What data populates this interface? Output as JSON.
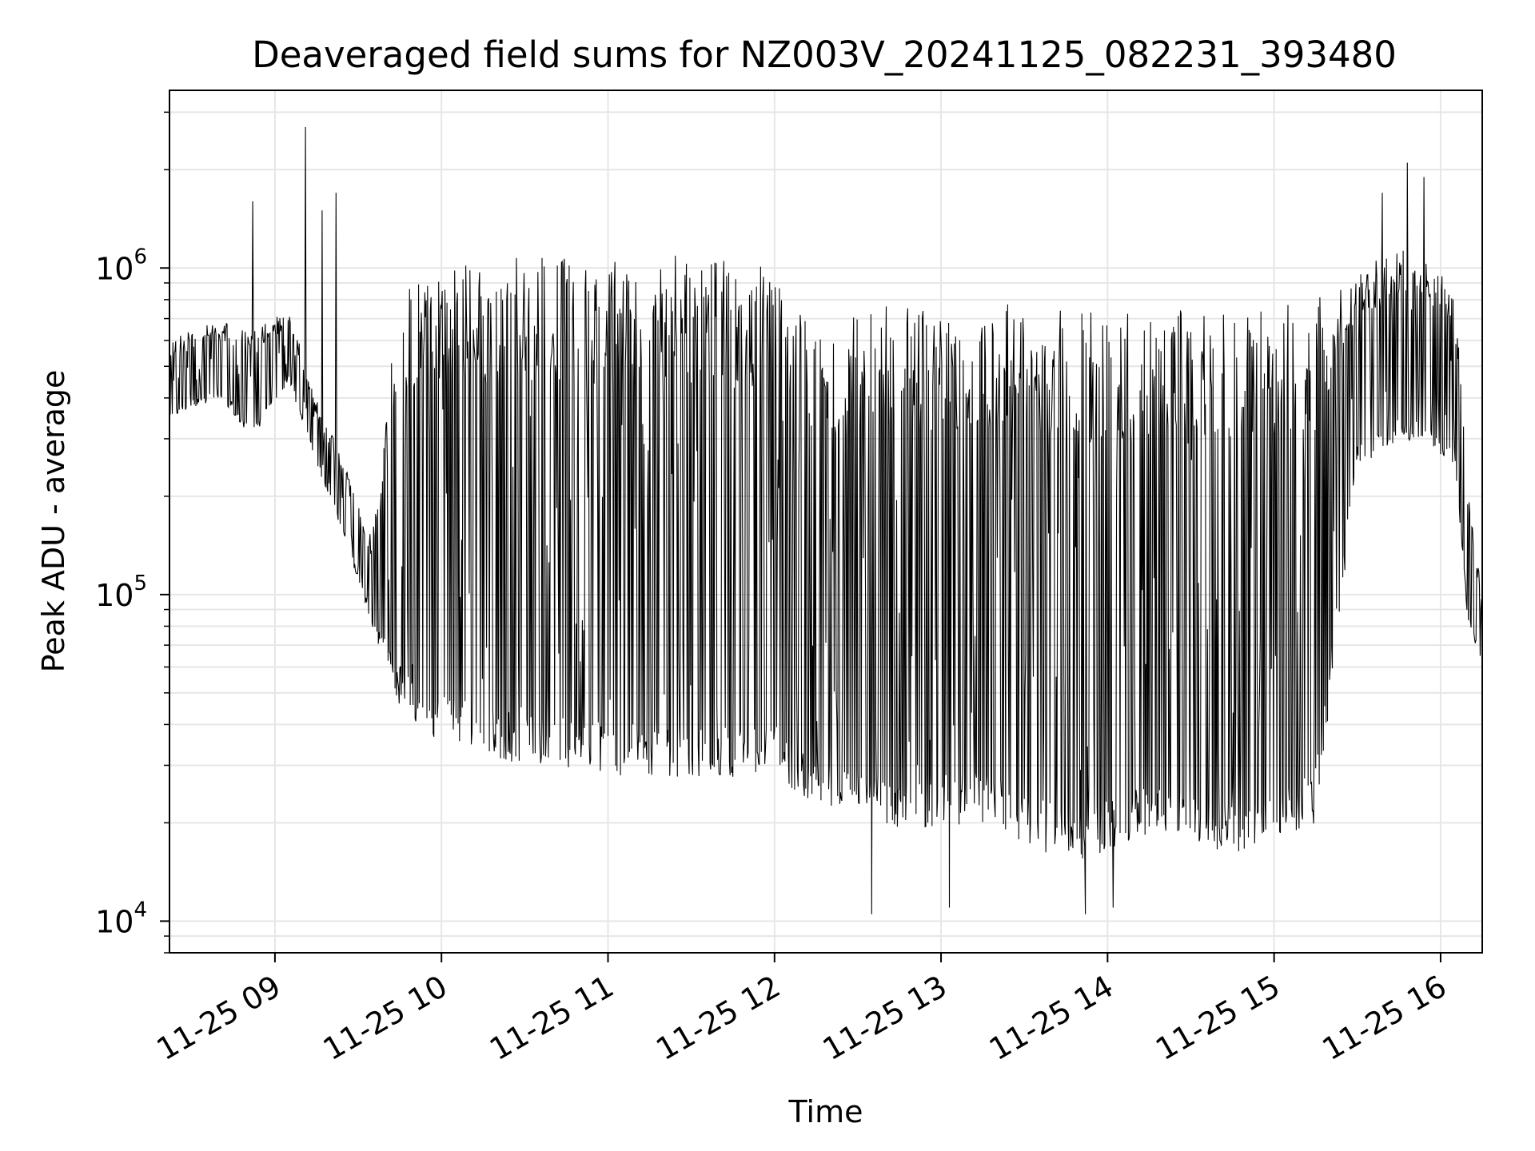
{
  "chart_data": {
    "type": "line",
    "title": "Deaveraged field sums for NZ003V_20241125_082231_393480",
    "xlabel": "Time",
    "ylabel": "Peak ADU - average",
    "yscale": "log",
    "x_range": [
      "2024-11-25 08:22",
      "2024-11-25 16:15"
    ],
    "ylim": [
      8000,
      3500000
    ],
    "grid": true,
    "line_color": "#000000",
    "x_ticks": [
      {
        "time": "2024-11-25 09:00",
        "label": "11-25 09"
      },
      {
        "time": "2024-11-25 10:00",
        "label": "11-25 10"
      },
      {
        "time": "2024-11-25 11:00",
        "label": "11-25 11"
      },
      {
        "time": "2024-11-25 12:00",
        "label": "11-25 12"
      },
      {
        "time": "2024-11-25 13:00",
        "label": "11-25 13"
      },
      {
        "time": "2024-11-25 14:00",
        "label": "11-25 14"
      },
      {
        "time": "2024-11-25 15:00",
        "label": "11-25 15"
      },
      {
        "time": "2024-11-25 16:00",
        "label": "11-25 16"
      }
    ],
    "y_ticks": [
      {
        "value": 10000,
        "base": "10",
        "exp": "4"
      },
      {
        "value": 100000,
        "base": "10",
        "exp": "5"
      },
      {
        "value": 1000000,
        "base": "10",
        "exp": "6"
      }
    ],
    "series": [
      {
        "envelope": [
          {
            "time": "2024-11-25 08:22",
            "low": 350000,
            "high": 600000
          },
          {
            "time": "2024-11-25 08:40",
            "low": 400000,
            "high": 700000
          },
          {
            "time": "2024-11-25 08:52",
            "low": 300000,
            "high": 650000
          },
          {
            "time": "2024-11-25 09:05",
            "low": 450000,
            "high": 750000
          },
          {
            "time": "2024-11-25 09:15",
            "low": 250000,
            "high": 400000
          },
          {
            "time": "2024-11-25 09:25",
            "low": 150000,
            "high": 250000
          },
          {
            "time": "2024-11-25 09:35",
            "low": 80000,
            "high": 150000
          },
          {
            "time": "2024-11-25 09:45",
            "low": 45000,
            "high": 900000
          },
          {
            "time": "2024-11-25 10:00",
            "low": 35000,
            "high": 1000000
          },
          {
            "time": "2024-11-25 10:30",
            "low": 30000,
            "high": 1100000
          },
          {
            "time": "2024-11-25 11:00",
            "low": 28000,
            "high": 1100000
          },
          {
            "time": "2024-11-25 11:30",
            "low": 27000,
            "high": 1100000
          },
          {
            "time": "2024-11-25 12:00",
            "low": 28000,
            "high": 1000000
          },
          {
            "time": "2024-11-25 12:15",
            "low": 22000,
            "high": 700000
          },
          {
            "time": "2024-11-25 12:45",
            "low": 19000,
            "high": 800000
          },
          {
            "time": "2024-11-25 13:15",
            "low": 20000,
            "high": 800000
          },
          {
            "time": "2024-11-25 13:45",
            "low": 15000,
            "high": 750000
          },
          {
            "time": "2024-11-25 14:15",
            "low": 18000,
            "high": 750000
          },
          {
            "time": "2024-11-25 14:45",
            "low": 16000,
            "high": 750000
          },
          {
            "time": "2024-11-25 15:15",
            "low": 20000,
            "high": 800000
          },
          {
            "time": "2024-11-25 15:30",
            "low": 250000,
            "high": 1000000
          },
          {
            "time": "2024-11-25 15:50",
            "low": 300000,
            "high": 1200000
          },
          {
            "time": "2024-11-25 16:05",
            "low": 250000,
            "high": 900000
          },
          {
            "time": "2024-11-25 16:10",
            "low": 80000,
            "high": 200000
          },
          {
            "time": "2024-11-25 16:15",
            "low": 60000,
            "high": 100000
          }
        ],
        "spikes": [
          {
            "time": "2024-11-25 08:52",
            "value": 1600000
          },
          {
            "time": "2024-11-25 09:11",
            "value": 2700000
          },
          {
            "time": "2024-11-25 09:17",
            "value": 1500000
          },
          {
            "time": "2024-11-25 09:22",
            "value": 1700000
          },
          {
            "time": "2024-11-25 15:39",
            "value": 1700000
          },
          {
            "time": "2024-11-25 15:48",
            "value": 2100000
          },
          {
            "time": "2024-11-25 15:54",
            "value": 1900000
          }
        ],
        "dips": [
          {
            "time": "2024-11-25 12:35",
            "value": 10500
          },
          {
            "time": "2024-11-25 13:03",
            "value": 11000
          },
          {
            "time": "2024-11-25 13:52",
            "value": 10500
          },
          {
            "time": "2024-11-25 14:02",
            "value": 11000
          }
        ]
      }
    ]
  }
}
